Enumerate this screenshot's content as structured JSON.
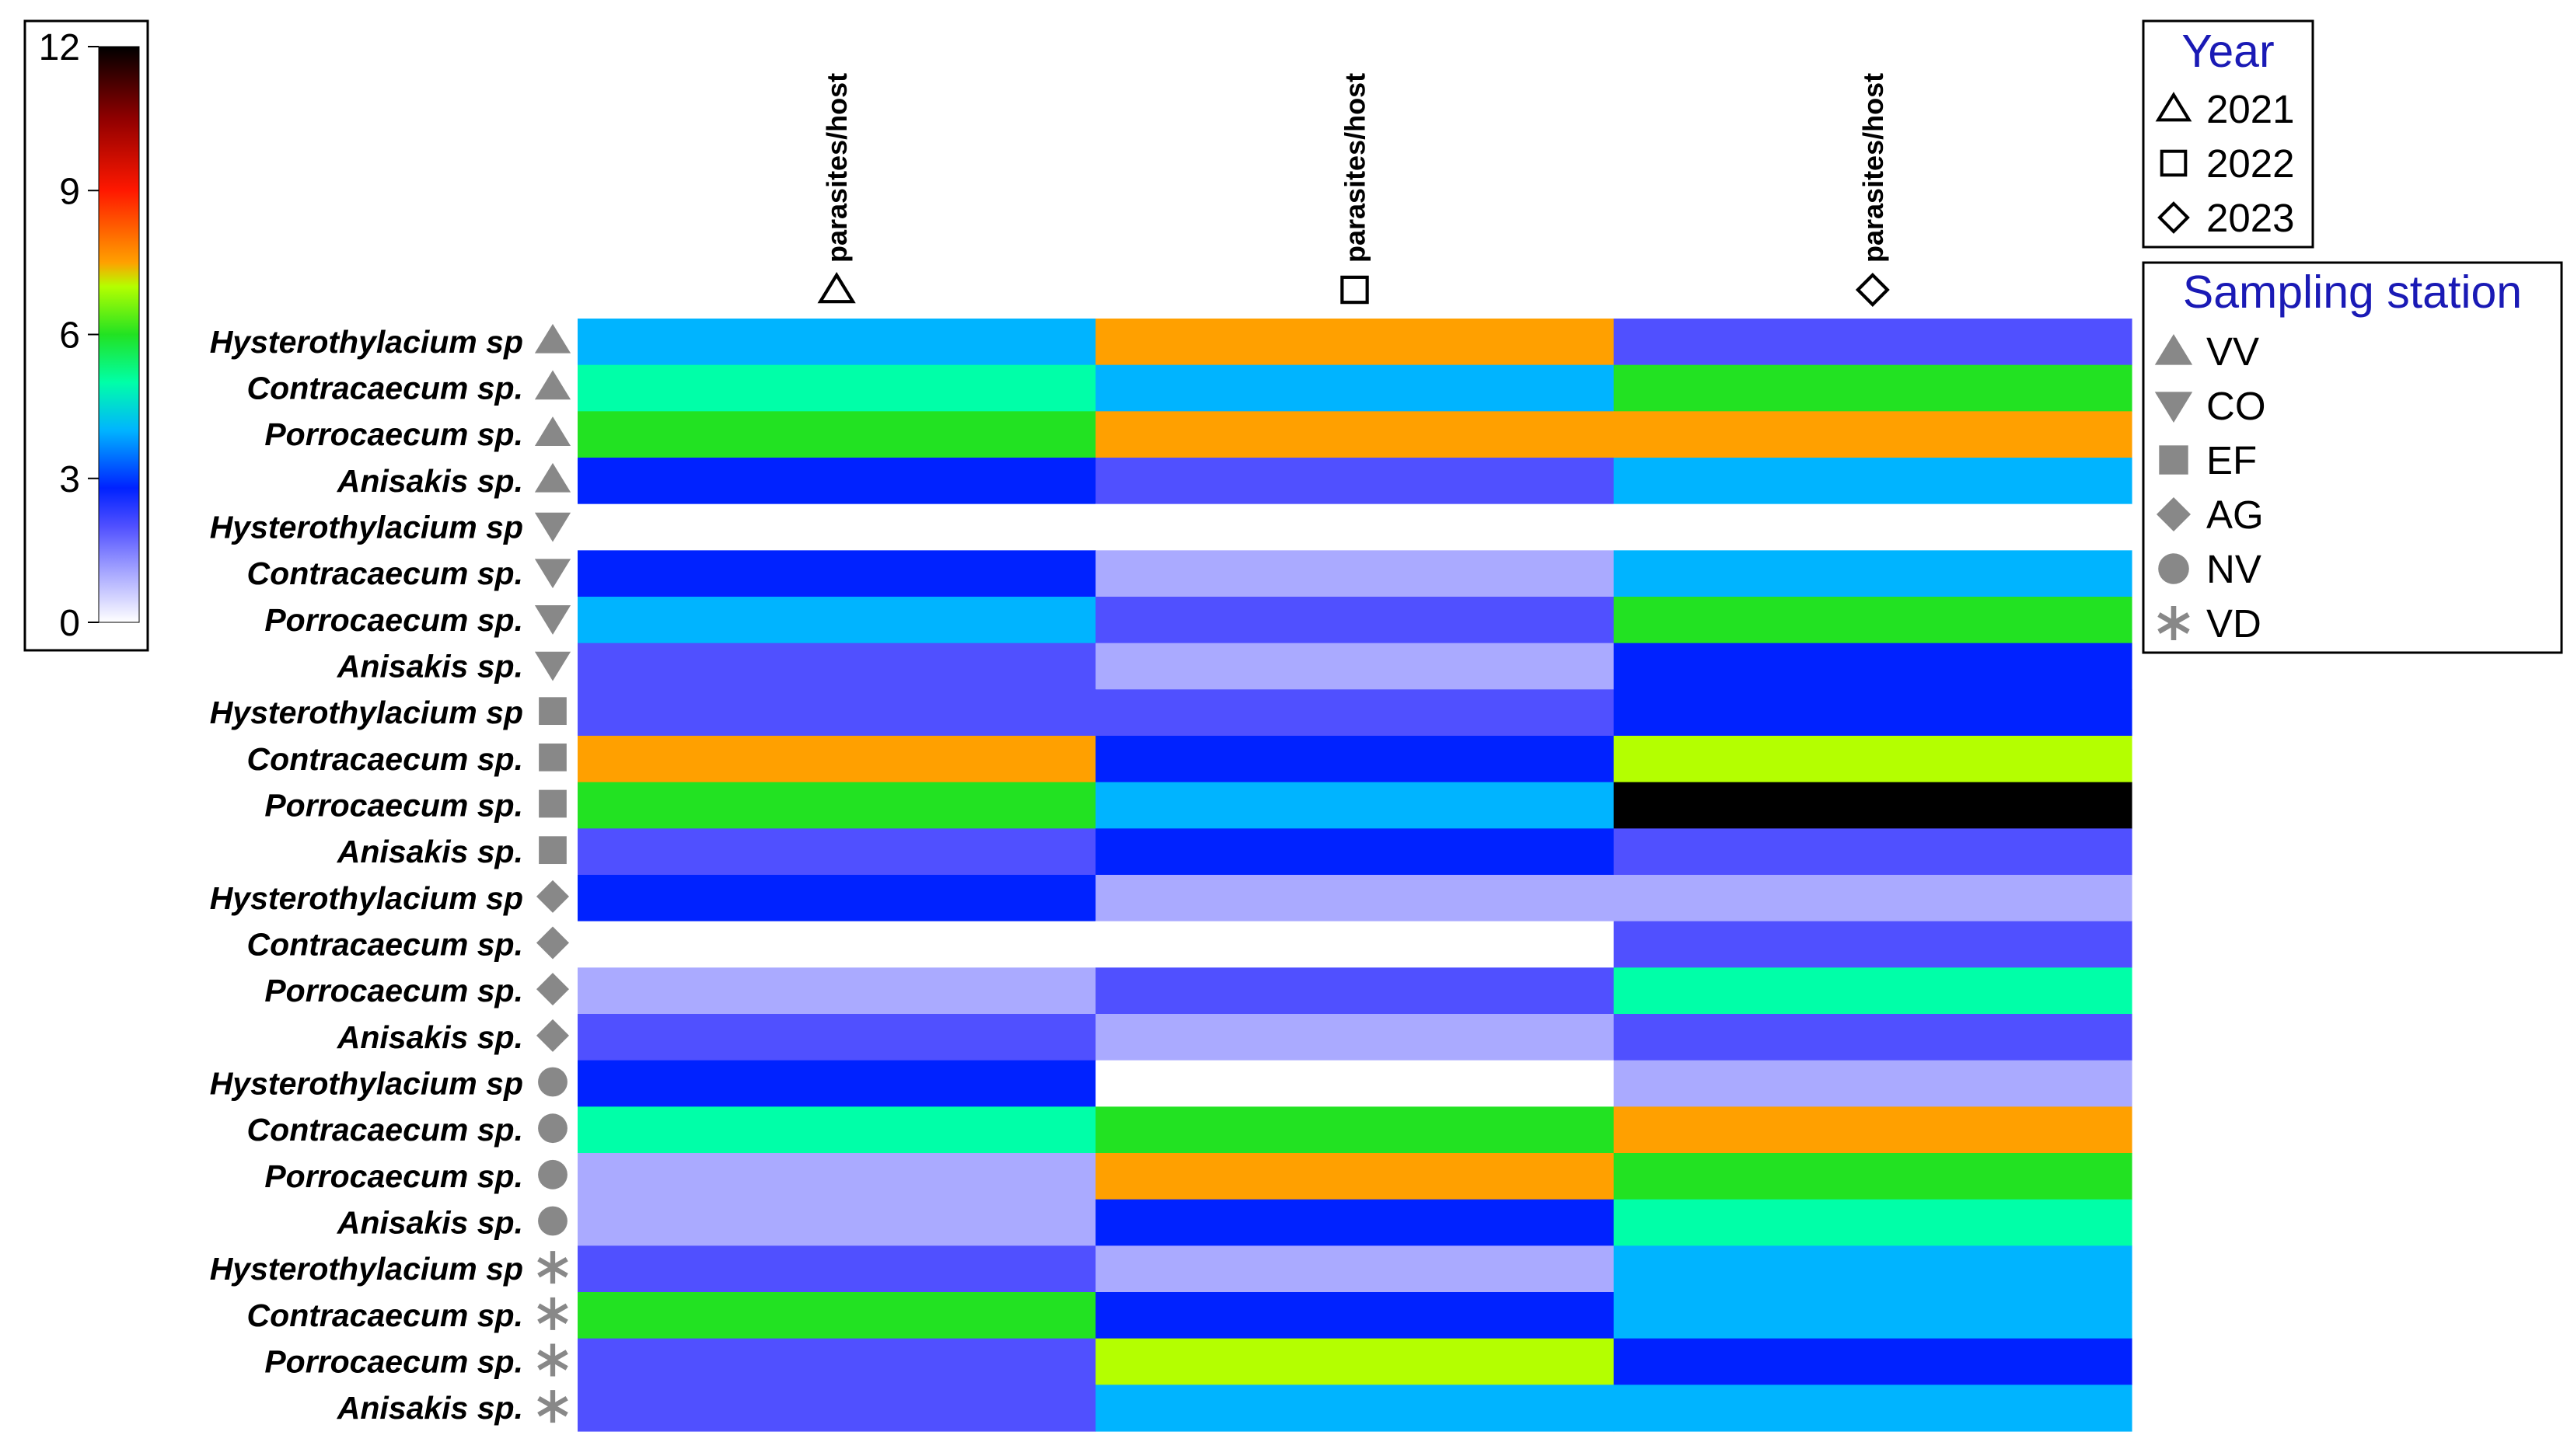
{
  "chart_data": {
    "type": "heatmap",
    "columns": [
      {
        "label": "parasites/host",
        "year": "2021",
        "symbol": "triangle-open"
      },
      {
        "label": "parasites/host",
        "year": "2022",
        "symbol": "square-open"
      },
      {
        "label": "parasites/host",
        "year": "2023",
        "symbol": "diamond-open"
      }
    ],
    "rows": [
      {
        "label": "Hysterothylacium sp",
        "station": "VV",
        "symbol": "triangle-up"
      },
      {
        "label": "Contracaecum sp.",
        "station": "VV",
        "symbol": "triangle-up"
      },
      {
        "label": "Porrocaecum sp.",
        "station": "VV",
        "symbol": "triangle-up"
      },
      {
        "label": "Anisakis sp.",
        "station": "VV",
        "symbol": "triangle-up"
      },
      {
        "label": "Hysterothylacium sp",
        "station": "CO",
        "symbol": "triangle-down"
      },
      {
        "label": "Contracaecum sp.",
        "station": "CO",
        "symbol": "triangle-down"
      },
      {
        "label": "Porrocaecum sp.",
        "station": "CO",
        "symbol": "triangle-down"
      },
      {
        "label": "Anisakis sp.",
        "station": "CO",
        "symbol": "triangle-down"
      },
      {
        "label": "Hysterothylacium sp",
        "station": "EF",
        "symbol": "square"
      },
      {
        "label": "Contracaecum sp.",
        "station": "EF",
        "symbol": "square"
      },
      {
        "label": "Porrocaecum sp.",
        "station": "EF",
        "symbol": "square"
      },
      {
        "label": "Anisakis sp.",
        "station": "EF",
        "symbol": "square"
      },
      {
        "label": "Hysterothylacium sp",
        "station": "AG",
        "symbol": "diamond"
      },
      {
        "label": "Contracaecum sp.",
        "station": "AG",
        "symbol": "diamond"
      },
      {
        "label": "Porrocaecum sp.",
        "station": "AG",
        "symbol": "diamond"
      },
      {
        "label": "Anisakis sp.",
        "station": "AG",
        "symbol": "diamond"
      },
      {
        "label": "Hysterothylacium sp",
        "station": "NV",
        "symbol": "circle"
      },
      {
        "label": "Contracaecum sp.",
        "station": "NV",
        "symbol": "circle"
      },
      {
        "label": "Porrocaecum sp.",
        "station": "NV",
        "symbol": "circle"
      },
      {
        "label": "Anisakis sp.",
        "station": "NV",
        "symbol": "circle"
      },
      {
        "label": "Hysterothylacium sp",
        "station": "VD",
        "symbol": "asterisk"
      },
      {
        "label": "Contracaecum sp.",
        "station": "VD",
        "symbol": "asterisk"
      },
      {
        "label": "Porrocaecum sp.",
        "station": "VD",
        "symbol": "asterisk"
      },
      {
        "label": "Anisakis sp.",
        "station": "VD",
        "symbol": "asterisk"
      }
    ],
    "values": [
      [
        4,
        7.5,
        2
      ],
      [
        5,
        4,
        6
      ],
      [
        6,
        7.5,
        7.5
      ],
      [
        2.8,
        2,
        4
      ],
      [
        0,
        0,
        0
      ],
      [
        2.8,
        1,
        4
      ],
      [
        4,
        2,
        6
      ],
      [
        2,
        1,
        2.8
      ],
      [
        2,
        2,
        2.8
      ],
      [
        7.5,
        2.8,
        7
      ],
      [
        6,
        4,
        12
      ],
      [
        2,
        2.8,
        2
      ],
      [
        2.8,
        1,
        1
      ],
      [
        0,
        0,
        2
      ],
      [
        1,
        2,
        5
      ],
      [
        2,
        1,
        2
      ],
      [
        2.8,
        0,
        1
      ],
      [
        5,
        6,
        7.5
      ],
      [
        1,
        7.5,
        6
      ],
      [
        1,
        2.8,
        5
      ],
      [
        2,
        1,
        4
      ],
      [
        6,
        2.8,
        4
      ],
      [
        2,
        7,
        2.8
      ],
      [
        2,
        4,
        4
      ]
    ],
    "colorscale": {
      "min": 0,
      "max": 12,
      "ticks": [
        "0",
        "3",
        "6",
        "9",
        "12"
      ],
      "stops": [
        {
          "value": 0,
          "color": "#ffffff"
        },
        {
          "value": 1,
          "color": "#aaaaff"
        },
        {
          "value": 2,
          "color": "#5050ff"
        },
        {
          "value": 2.8,
          "color": "#0022ff"
        },
        {
          "value": 4,
          "color": "#00b4ff"
        },
        {
          "value": 5,
          "color": "#00ffa8"
        },
        {
          "value": 6,
          "color": "#22e222"
        },
        {
          "value": 7,
          "color": "#b4ff00"
        },
        {
          "value": 7.5,
          "color": "#ffa000"
        },
        {
          "value": 9,
          "color": "#ff1800"
        },
        {
          "value": 10.5,
          "color": "#900000"
        },
        {
          "value": 12,
          "color": "#000000"
        }
      ]
    },
    "legend": {
      "year_title": "Year",
      "years": [
        {
          "label": "2021",
          "symbol": "triangle-open"
        },
        {
          "label": "2022",
          "symbol": "square-open"
        },
        {
          "label": "2023",
          "symbol": "diamond-open"
        }
      ],
      "station_title": "Sampling station",
      "stations": [
        {
          "label": "VV",
          "symbol": "triangle-up"
        },
        {
          "label": "CO",
          "symbol": "triangle-down"
        },
        {
          "label": "EF",
          "symbol": "square"
        },
        {
          "label": "AG",
          "symbol": "diamond"
        },
        {
          "label": "NV",
          "symbol": "circle"
        },
        {
          "label": "VD",
          "symbol": "asterisk"
        }
      ]
    }
  }
}
